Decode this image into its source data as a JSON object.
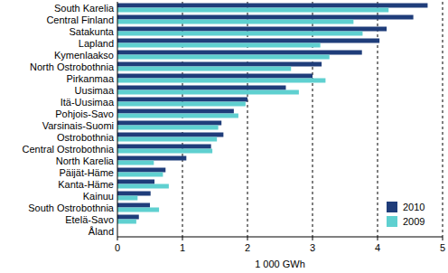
{
  "chart_data": {
    "type": "bar",
    "orientation": "horizontal",
    "x_label": "1 000 GWh",
    "categories": [
      "South Karelia",
      "Central Finland",
      "Satakunta",
      "Lapland",
      "Kymenlaakso",
      "North Ostrobothnia",
      "Pirkanmaa",
      "Uusimaa",
      "Itä-Uusimaa",
      "Pohjois-Savo",
      "Varsinais-Suomi",
      "Ostrobothnia",
      "Central Ostrobothnia",
      "North Karelia",
      "Päijät-Häme",
      "Kanta-Häme",
      "Kainuu",
      "South Ostrobothnia",
      "Etelä-Savo",
      "Åland"
    ],
    "series": [
      {
        "name": "2010",
        "color": "#1f3d7a",
        "values": [
          4.77,
          4.55,
          4.14,
          4.03,
          3.76,
          3.14,
          3.0,
          2.59,
          2.0,
          1.79,
          1.6,
          1.63,
          1.44,
          1.06,
          0.74,
          0.57,
          0.51,
          0.5,
          0.33,
          0
        ]
      },
      {
        "name": "2009",
        "color": "#5fd0d0",
        "values": [
          4.17,
          3.63,
          3.77,
          3.12,
          3.26,
          2.67,
          3.2,
          2.79,
          1.97,
          1.86,
          1.55,
          1.53,
          1.46,
          0.56,
          0.7,
          0.79,
          0.31,
          0.64,
          0.29,
          0
        ]
      }
    ],
    "xlim": [
      0,
      5
    ],
    "xticks": [
      0,
      1,
      2,
      3,
      4,
      5
    ],
    "grid": true,
    "legend": "lower right"
  }
}
